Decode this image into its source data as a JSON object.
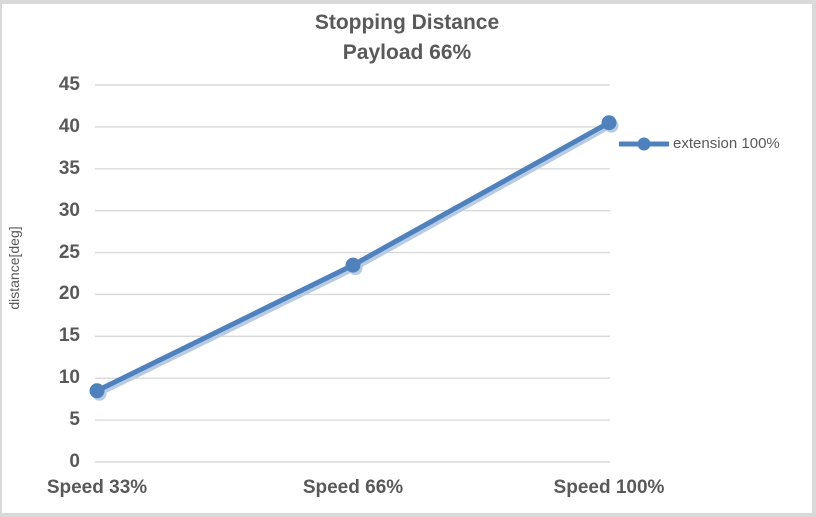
{
  "chart_data": {
    "type": "line",
    "title_lines": [
      "Stopping Distance",
      "Payload 66%"
    ],
    "categories": [
      "Speed 33%",
      "Speed 66%",
      "Speed 100%"
    ],
    "series": [
      {
        "name": "extension 100%",
        "values": [
          8.5,
          23.5,
          40.5
        ]
      }
    ],
    "xlabel": "",
    "ylabel": "distance[deg]",
    "ylim": [
      0,
      45
    ],
    "ytick_step": 5,
    "grid": true,
    "legend_position": "right",
    "marker": "circle",
    "colors": {
      "line": "#4F81BD",
      "line_shadow": "#B7CBE4",
      "gridline": "#D9D9D9",
      "text": "#595959",
      "chart_border": "#D9D9D9",
      "background": "#FFFFFF"
    }
  }
}
